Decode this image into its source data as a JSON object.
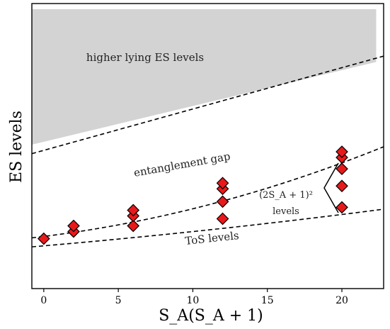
{
  "chart_data": {
    "type": "scatter",
    "xlabel": "S_A(S_A + 1)",
    "ylabel": "ES levels",
    "x_ticks": [
      0,
      5,
      10,
      15,
      20
    ],
    "xlim": [
      -0.8,
      22.8
    ],
    "ylim": [
      0,
      10
    ],
    "y_ticks_shown": false,
    "grid": false,
    "colors": {
      "marker_fill": "#e8191b",
      "marker_edge": "#000000",
      "shaded_region": "#d3d3d3",
      "dashed_line": "#000000"
    },
    "series": [
      {
        "marker": "diamond",
        "points": [
          [
            0,
            1.75
          ],
          [
            2,
            2.0
          ],
          [
            2,
            2.2
          ],
          [
            6,
            2.2
          ],
          [
            6,
            2.55
          ],
          [
            6,
            2.75
          ],
          [
            12,
            2.45
          ],
          [
            12,
            3.05
          ],
          [
            12,
            3.5
          ],
          [
            12,
            3.7
          ],
          [
            20,
            2.85
          ],
          [
            20,
            3.6
          ],
          [
            20,
            4.2
          ],
          [
            20,
            4.6
          ],
          [
            20,
            4.8
          ]
        ]
      }
    ],
    "dashed_lines": [
      {
        "name": "ToS lower bound",
        "x": [
          -0.8,
          22.8
        ],
        "y_quadratic": {
          "a": 0.0005,
          "b": 0.045,
          "c": 1.5
        }
      },
      {
        "name": "ToS upper bound",
        "x": [
          -0.8,
          22.8
        ],
        "y_quadratic": {
          "a": 0.0032,
          "b": 0.065,
          "c": 1.83
        }
      },
      {
        "name": "gap boundary",
        "x": [
          -0.8,
          22.8
        ],
        "y_linear": {
          "m": 0.145,
          "b": 4.85
        }
      }
    ],
    "shaded_region": {
      "label": "higher lying ES levels",
      "lower_edge": {
        "x": [
          -0.8,
          22.3
        ],
        "y": [
          5.05,
          7.95
        ]
      },
      "upper_y": 9.8
    },
    "annotations": {
      "higher_levels": "higher lying ES levels",
      "gap": "entanglement gap",
      "tos": "ToS levels",
      "multiplicity_formula": "(2S_A + 1)²",
      "multiplicity_label": "levels"
    }
  }
}
